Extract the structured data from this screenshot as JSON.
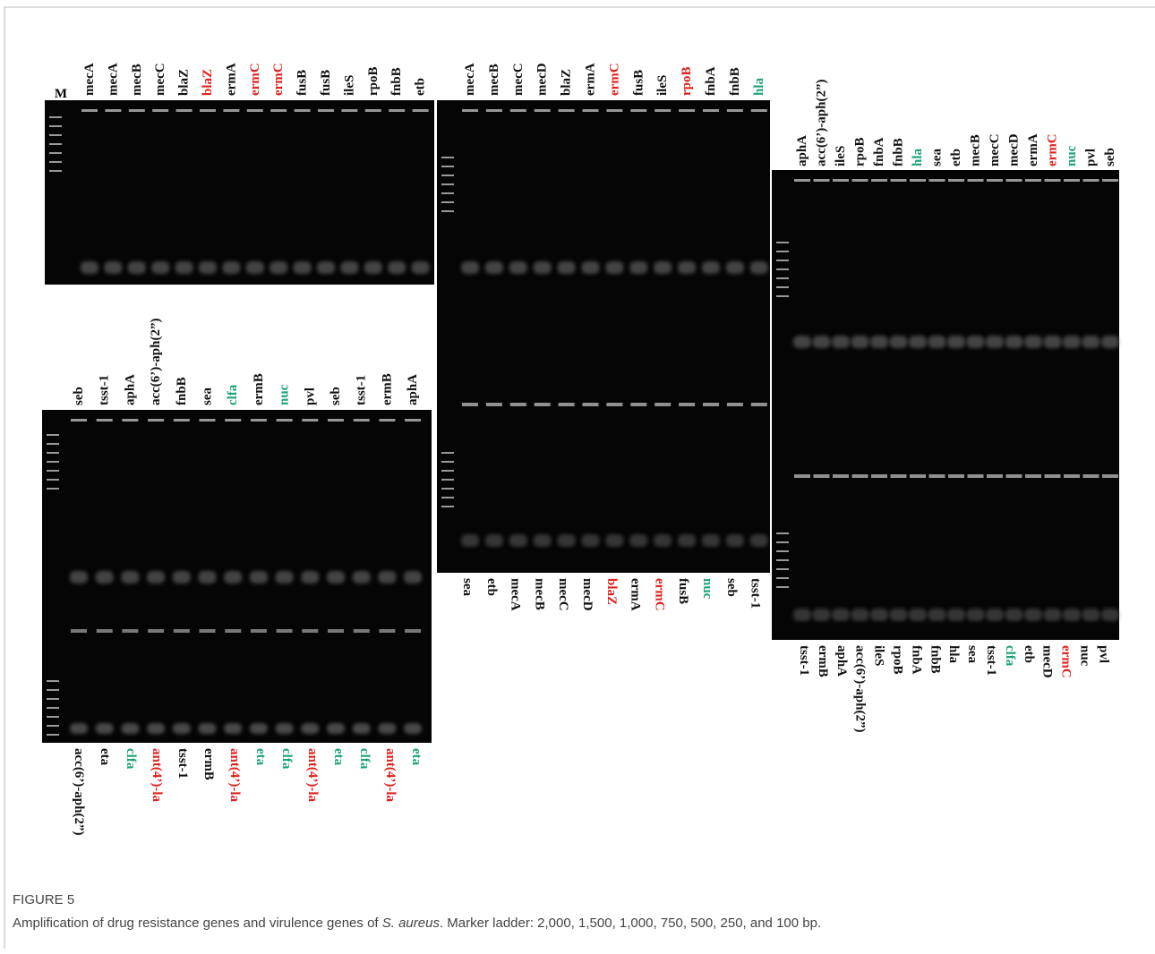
{
  "panels": [
    {
      "marker": "M",
      "top_labels": [
        {
          "text": "mecA",
          "color": "#111111"
        },
        {
          "text": "mecA",
          "color": "#111111"
        },
        {
          "text": "mecB",
          "color": "#111111"
        },
        {
          "text": "mecC",
          "color": "#111111"
        },
        {
          "text": "blaZ",
          "color": "#111111"
        },
        {
          "text": "blaZ",
          "color": "#e0201c"
        },
        {
          "text": "ermA",
          "color": "#111111"
        },
        {
          "text": "ermC",
          "color": "#e0201c"
        },
        {
          "text": "ermC",
          "color": "#e0201c"
        },
        {
          "text": "fusB",
          "color": "#111111"
        },
        {
          "text": "fusB",
          "color": "#111111"
        },
        {
          "text": "ileS",
          "color": "#111111"
        },
        {
          "text": "rpoB",
          "color": "#111111"
        },
        {
          "text": "fnbB",
          "color": "#111111"
        },
        {
          "text": "etb",
          "color": "#111111"
        }
      ],
      "bottom_labels": []
    },
    {
      "top_labels": [
        {
          "text": "mecA",
          "color": "#111111"
        },
        {
          "text": "mecB",
          "color": "#111111"
        },
        {
          "text": "mecC",
          "color": "#111111"
        },
        {
          "text": "mecD",
          "color": "#111111"
        },
        {
          "text": "blaZ",
          "color": "#111111"
        },
        {
          "text": "ermA",
          "color": "#111111"
        },
        {
          "text": "ermC",
          "color": "#e0201c"
        },
        {
          "text": "fusB",
          "color": "#111111"
        },
        {
          "text": "ileS",
          "color": "#111111"
        },
        {
          "text": "rpoB",
          "color": "#e0201c"
        },
        {
          "text": "fnbA",
          "color": "#111111"
        },
        {
          "text": "fnbB",
          "color": "#111111"
        },
        {
          "text": "hla",
          "color": "#1aa37a"
        }
      ],
      "bottom_labels": [
        {
          "text": "sea",
          "color": "#111111"
        },
        {
          "text": "etb",
          "color": "#111111"
        },
        {
          "text": "mecA",
          "color": "#111111"
        },
        {
          "text": "mecB",
          "color": "#111111"
        },
        {
          "text": "mecC",
          "color": "#111111"
        },
        {
          "text": "mecD",
          "color": "#111111"
        },
        {
          "text": "blaZ",
          "color": "#e0201c"
        },
        {
          "text": "ermA",
          "color": "#111111"
        },
        {
          "text": "ermC",
          "color": "#e0201c"
        },
        {
          "text": "fusB",
          "color": "#111111"
        },
        {
          "text": "nuc",
          "color": "#1aa37a"
        },
        {
          "text": "seb",
          "color": "#111111"
        },
        {
          "text": "tsst-1",
          "color": "#111111"
        }
      ]
    },
    {
      "top_labels": [
        {
          "text": "aphA",
          "color": "#111111"
        },
        {
          "text": "acc(6’)-aph(2”)",
          "color": "#111111"
        },
        {
          "text": "ileS",
          "color": "#111111"
        },
        {
          "text": "rpoB",
          "color": "#111111"
        },
        {
          "text": "fnbA",
          "color": "#111111"
        },
        {
          "text": "fnbB",
          "color": "#111111"
        },
        {
          "text": "hla",
          "color": "#1aa37a"
        },
        {
          "text": "sea",
          "color": "#111111"
        },
        {
          "text": "etb",
          "color": "#111111"
        },
        {
          "text": "mecB",
          "color": "#111111"
        },
        {
          "text": "mecC",
          "color": "#111111"
        },
        {
          "text": "mecD",
          "color": "#111111"
        },
        {
          "text": "ermA",
          "color": "#111111"
        },
        {
          "text": "ermC",
          "color": "#e0201c"
        },
        {
          "text": "nuc",
          "color": "#1aa37a"
        },
        {
          "text": "pvl",
          "color": "#111111"
        },
        {
          "text": "seb",
          "color": "#111111"
        }
      ],
      "bottom_labels": [
        {
          "text": "tsst-1",
          "color": "#111111"
        },
        {
          "text": "ermB",
          "color": "#111111"
        },
        {
          "text": "aphA",
          "color": "#111111"
        },
        {
          "text": "acc(6’)-aph(2”)",
          "color": "#111111"
        },
        {
          "text": "ileS",
          "color": "#111111"
        },
        {
          "text": "rpoB",
          "color": "#111111"
        },
        {
          "text": "fnbA",
          "color": "#111111"
        },
        {
          "text": "fnbB",
          "color": "#111111"
        },
        {
          "text": "hla",
          "color": "#111111"
        },
        {
          "text": "sea",
          "color": "#111111"
        },
        {
          "text": "tsst-1",
          "color": "#111111"
        },
        {
          "text": "clfa",
          "color": "#1aa37a"
        },
        {
          "text": "etb",
          "color": "#111111"
        },
        {
          "text": "mecD",
          "color": "#111111"
        },
        {
          "text": "ermC",
          "color": "#e0201c"
        },
        {
          "text": "nuc",
          "color": "#111111"
        },
        {
          "text": "pvl",
          "color": "#111111"
        }
      ]
    },
    {
      "top_labels": [
        {
          "text": "seb",
          "color": "#111111"
        },
        {
          "text": "tsst-1",
          "color": "#111111"
        },
        {
          "text": "aphA",
          "color": "#111111"
        },
        {
          "text": "acc(6’)-aph(2”)",
          "color": "#111111"
        },
        {
          "text": "fnbB",
          "color": "#111111"
        },
        {
          "text": "sea",
          "color": "#111111"
        },
        {
          "text": "clfa",
          "color": "#1aa37a"
        },
        {
          "text": "ermB",
          "color": "#111111"
        },
        {
          "text": "nuc",
          "color": "#1aa37a"
        },
        {
          "text": "pvl",
          "color": "#111111"
        },
        {
          "text": "seb",
          "color": "#111111"
        },
        {
          "text": "tsst-1",
          "color": "#111111"
        },
        {
          "text": "ermB",
          "color": "#111111"
        },
        {
          "text": "aphA",
          "color": "#111111"
        }
      ],
      "bottom_labels": [
        {
          "text": "acc(6’)-aph(2”)",
          "color": "#111111"
        },
        {
          "text": "eta",
          "color": "#111111"
        },
        {
          "text": "clfa",
          "color": "#1aa37a"
        },
        {
          "text": "ant(4’)-la",
          "color": "#e0201c"
        },
        {
          "text": "tsst-1",
          "color": "#111111"
        },
        {
          "text": "ermB",
          "color": "#111111"
        },
        {
          "text": "ant(4’)-la",
          "color": "#e0201c"
        },
        {
          "text": "eta",
          "color": "#1aa37a"
        },
        {
          "text": "clfa",
          "color": "#1aa37a"
        },
        {
          "text": "ant(4’)-la",
          "color": "#e0201c"
        },
        {
          "text": "eta",
          "color": "#1aa37a"
        },
        {
          "text": "clfa",
          "color": "#1aa37a"
        },
        {
          "text": "ant(4’)-la",
          "color": "#e0201c"
        },
        {
          "text": "eta",
          "color": "#1aa37a"
        }
      ]
    }
  ],
  "caption": {
    "figure_label": "FIGURE 5",
    "text_before": "Amplification of drug resistance genes and virulence genes of ",
    "species": "S. aureus",
    "text_after": ". Marker ladder: 2,000, 1,500, 1,000, 750, 500, 250, and 100 bp."
  }
}
